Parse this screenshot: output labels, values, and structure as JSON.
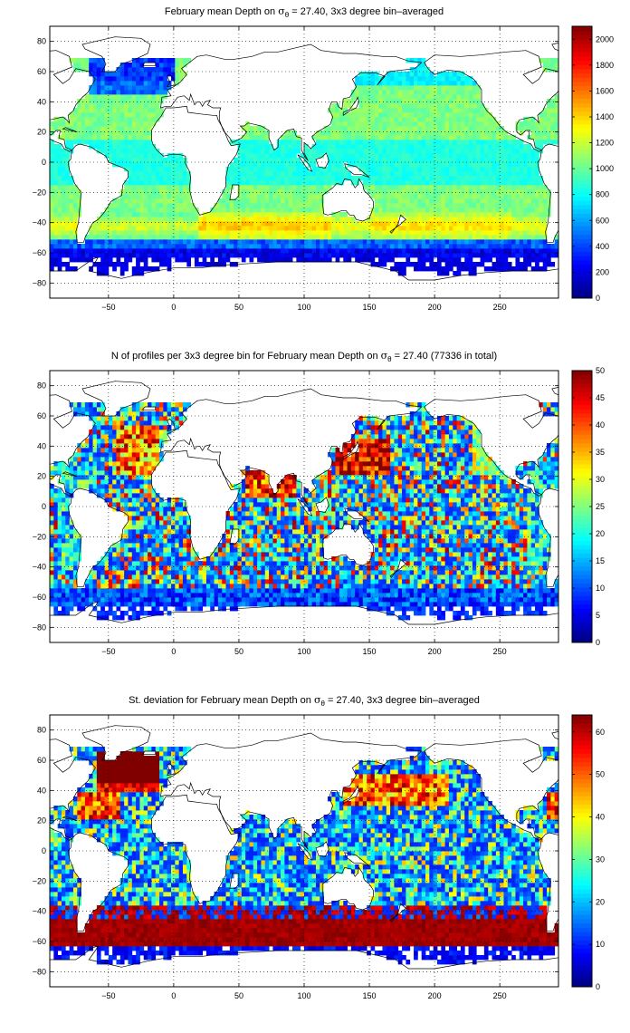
{
  "chart_data": [
    {
      "type": "heatmap",
      "title_prefix": "February mean Depth on ",
      "title_symbol": "σ",
      "title_subscript": "θ",
      "title_suffix": " = 27.40, 3x3 degree bin–averaged",
      "xlim": [
        -95,
        295
      ],
      "ylim": [
        -90,
        90
      ],
      "xticks": [
        -50,
        0,
        50,
        100,
        150,
        200,
        250
      ],
      "yticks": [
        -80,
        -60,
        -40,
        -20,
        0,
        20,
        40,
        60,
        80
      ],
      "colorbar": {
        "min": 0,
        "max": 2100,
        "ticks": [
          0,
          200,
          400,
          600,
          800,
          1000,
          1200,
          1400,
          1600,
          1800,
          2000
        ]
      },
      "colormap": "jet",
      "grid": "dotted",
      "field": "depth",
      "representative_values": [
        {
          "region": "Southern Ocean south of 60S",
          "value": 150
        },
        {
          "region": "50S-60S band",
          "value": 500
        },
        {
          "region": "South Indian 35S-45S",
          "value": 1450
        },
        {
          "region": "South Pacific 35S-50S",
          "value": 1400
        },
        {
          "region": "Subtropical gyres",
          "value": 1100
        },
        {
          "region": "Tropics",
          "value": 850
        },
        {
          "region": "North Atlantic subpolar 50N-65N",
          "value": 450
        }
      ]
    },
    {
      "type": "heatmap",
      "title_prefix": "N of profiles per 3x3 degree bin for February mean Depth on ",
      "title_symbol": "σ",
      "title_subscript": "θ",
      "title_suffix": " = 27.40 (77336 in total)",
      "xlim": [
        -95,
        295
      ],
      "ylim": [
        -90,
        90
      ],
      "xticks": [
        -50,
        0,
        50,
        100,
        150,
        200,
        250
      ],
      "yticks": [
        -80,
        -60,
        -40,
        -20,
        0,
        20,
        40,
        60,
        80
      ],
      "colorbar": {
        "min": 0,
        "max": 50,
        "ticks": [
          0,
          5,
          10,
          15,
          20,
          25,
          30,
          35,
          40,
          45,
          50
        ]
      },
      "colormap": "jet",
      "grid": "dotted",
      "field": "count",
      "representative_values": [
        {
          "region": "Kuroshio / NW Pacific",
          "value": 50
        },
        {
          "region": "Arabian Sea / Bay of Bengal",
          "value": 48
        },
        {
          "region": "Southern Ocean",
          "value": 8
        },
        {
          "region": "Open ocean interior",
          "value": 20
        }
      ]
    },
    {
      "type": "heatmap",
      "title_prefix": "St. deviation for February mean Depth on ",
      "title_symbol": "σ",
      "title_subscript": "θ",
      "title_suffix": " = 27.40, 3x3 degree bin–averaged",
      "xlim": [
        -95,
        295
      ],
      "ylim": [
        -90,
        90
      ],
      "xticks": [
        -50,
        0,
        50,
        100,
        150,
        200,
        250
      ],
      "yticks": [
        -80,
        -60,
        -40,
        -20,
        0,
        20,
        40,
        60,
        80
      ],
      "colorbar": {
        "min": 0,
        "max": 64,
        "ticks": [
          0,
          10,
          20,
          30,
          40,
          50,
          60
        ]
      },
      "colormap": "jet",
      "grid": "dotted",
      "field": "std",
      "representative_values": [
        {
          "region": "Antarctic Circumpolar Current 45S-60S",
          "value": 64
        },
        {
          "region": "North Atlantic subpolar",
          "value": 64
        },
        {
          "region": "Kuroshio extension",
          "value": 45
        },
        {
          "region": "Subtropical interiors",
          "value": 20
        },
        {
          "region": "South of 65S",
          "value": 5
        }
      ]
    }
  ]
}
